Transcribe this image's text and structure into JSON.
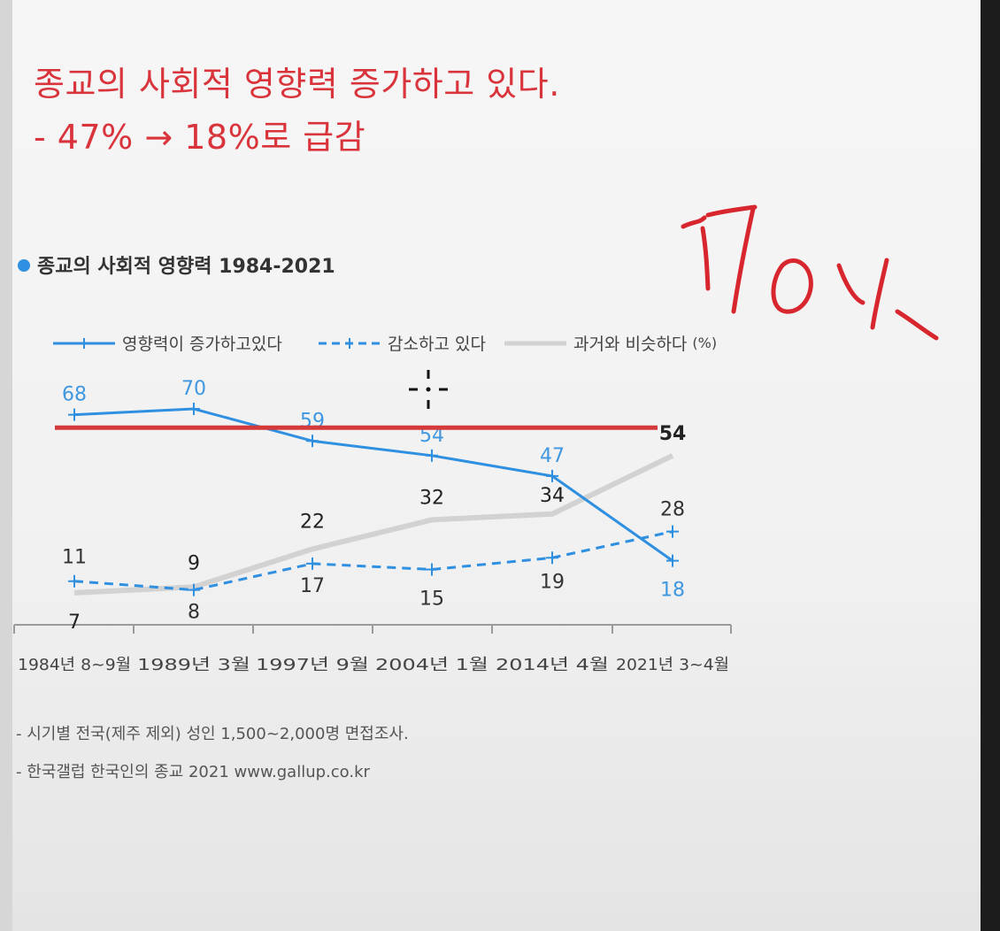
{
  "headline": {
    "line1": "종교의 사회적 영향력 증가하고 있다.",
    "line2": "- 47% → 18%로 급감"
  },
  "chart_title": "종교의 사회적 영향력 1984-2021",
  "legend": {
    "increase": "영향력이 증가하고있다",
    "decrease": "감소하고 있다",
    "same": "과거와 비슷하다",
    "unit": "(%)"
  },
  "footnotes": [
    "- 시기별 전국(제주 제외) 성인 1,500~2,000명 면접조사.",
    "- 한국갤럽 한국인의 종교 2021 www.gallup.co.kr"
  ],
  "handwritten_annotation": "70y.",
  "colors": {
    "headline": "#d9343b",
    "increase": "#2f8fe0",
    "decrease": "#2f8fe0",
    "same": "#d2d2d2",
    "reference_line": "#d43a3a",
    "annotation": "#d8262e"
  },
  "chart_data": {
    "type": "line",
    "title": "종교의 사회적 영향력 1984-2021",
    "categories": [
      "1984년 8~9월",
      "1989년 3월",
      "1997년 9월",
      "2004년 1월",
      "2014년 4월",
      "2021년 3~4월"
    ],
    "series": [
      {
        "name": "영향력이 증가하고있다",
        "values": [
          68,
          70,
          59,
          54,
          47,
          18
        ],
        "style": "solid",
        "color": "#2f8fe0"
      },
      {
        "name": "감소하고 있다",
        "values": [
          11,
          8,
          17,
          15,
          19,
          28
        ],
        "style": "dashed",
        "color": "#2f8fe0"
      },
      {
        "name": "과거와 비슷하다",
        "values": [
          7,
          9,
          22,
          32,
          34,
          54
        ],
        "style": "solid",
        "color": "#d2d2d2"
      }
    ],
    "ylim": [
      0,
      75
    ],
    "unit": "%",
    "grid": false,
    "legend_position": "top",
    "reference_line": {
      "value": 66,
      "color": "#d43a3a"
    }
  }
}
